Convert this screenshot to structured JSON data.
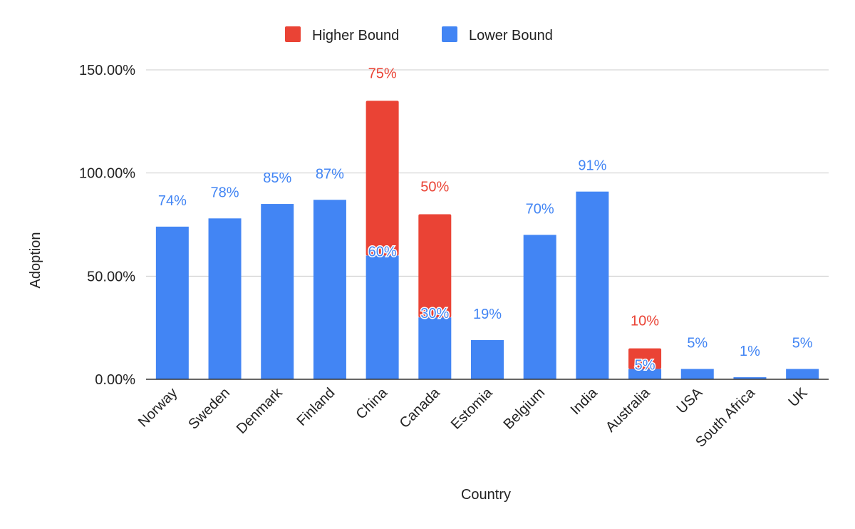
{
  "chart_data": {
    "type": "bar",
    "stacked": true,
    "title": "",
    "xlabel": "Country",
    "ylabel": "Adoption",
    "ylim": [
      0,
      150
    ],
    "yticks": [
      "0.00%",
      "50.00%",
      "100.00%",
      "150.00%"
    ],
    "grid": true,
    "legend_position": "top",
    "categories": [
      "Norway",
      "Sweden",
      "Denmark",
      "Finland",
      "China",
      "Canada",
      "Estomia",
      "Belgium",
      "India",
      "Australia",
      "USA",
      "South Africa",
      "UK"
    ],
    "series": [
      {
        "name": "Lower Bound",
        "color": "#4285F4",
        "values": [
          74,
          78,
          85,
          87,
          60,
          30,
          19,
          70,
          91,
          5,
          5,
          1,
          5
        ],
        "labels": [
          "74%",
          "78%",
          "85%",
          "87%",
          "60%",
          "30%",
          "19%",
          "70%",
          "91%",
          "5%",
          "5%",
          "1%",
          "5%"
        ]
      },
      {
        "name": "Higher Bound",
        "color": "#EA4335",
        "values": [
          0,
          0,
          0,
          0,
          75,
          50,
          0,
          0,
          0,
          10,
          0,
          0,
          0
        ],
        "labels": [
          "",
          "",
          "",
          "",
          "75%",
          "50%",
          "",
          "",
          "",
          "10%",
          "",
          "",
          ""
        ]
      }
    ],
    "legend_order": [
      "Higher Bound",
      "Lower Bound"
    ]
  }
}
